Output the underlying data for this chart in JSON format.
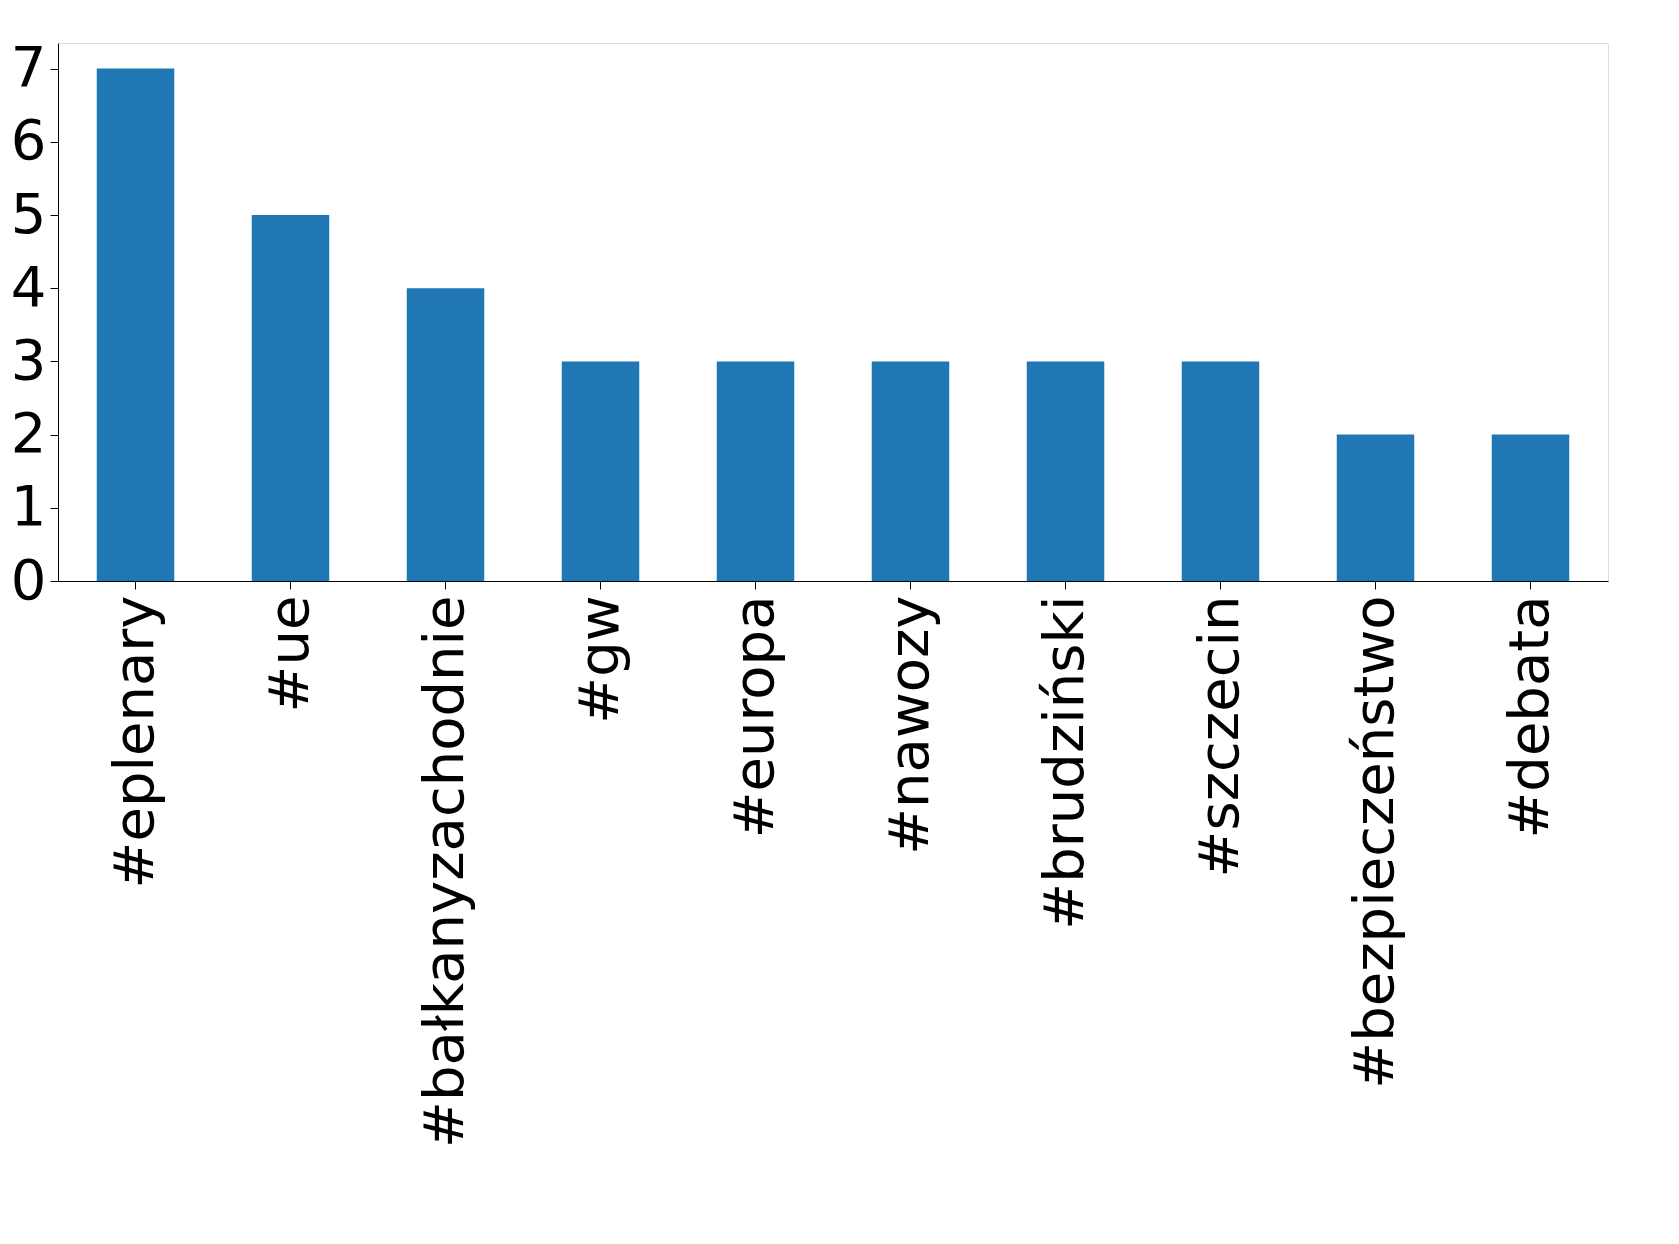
{
  "chart_data": {
    "type": "bar",
    "categories": [
      "#eplenary",
      "#ue",
      "#bałkanyzachodnie",
      "#gw",
      "#europa",
      "#nawozy",
      "#brudziński",
      "#szczecin",
      "#bezpieczeństwo",
      "#debata"
    ],
    "values": [
      7,
      5,
      4,
      3,
      3,
      3,
      3,
      3,
      2,
      2
    ],
    "color": "#1f77b4",
    "ylim": [
      0,
      7.35
    ],
    "yticks": [
      0,
      1,
      2,
      3,
      4,
      5,
      6,
      7
    ],
    "grid": false
  }
}
